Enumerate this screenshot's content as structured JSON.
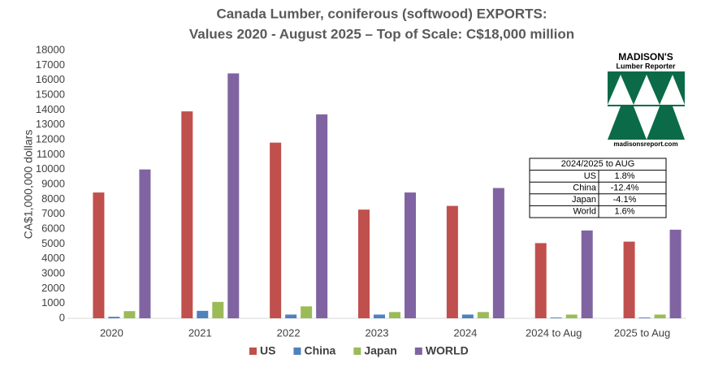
{
  "chart_data": {
    "type": "bar",
    "title": [
      "Canada Lumber, coniferous (softwood) EXPORTS:",
      "Values 2020 - August 2025 – Top of Scale: C$18,000 million"
    ],
    "y_label": "CA$1,000,000 dollars",
    "categories": [
      "2020",
      "2021",
      "2022",
      "2023",
      "2024",
      "2024 to Aug",
      "2025 to Aug"
    ],
    "series": [
      {
        "name": "US",
        "color": "#c0504d",
        "values": [
          8450,
          13900,
          11800,
          7300,
          7550,
          5050,
          5150
        ]
      },
      {
        "name": "China",
        "color": "#4f81bd",
        "values": [
          100,
          500,
          250,
          250,
          250,
          50,
          50
        ]
      },
      {
        "name": "Japan",
        "color": "#9bbb59",
        "values": [
          480,
          1100,
          800,
          420,
          420,
          250,
          250
        ]
      },
      {
        "name": "WORLD",
        "color": "#8064a2",
        "values": [
          10000,
          16450,
          13700,
          8450,
          8750,
          5900,
          5950
        ]
      }
    ],
    "ylim": [
      0,
      18000
    ],
    "yticks": [
      0,
      1000,
      2000,
      3000,
      4000,
      5000,
      6000,
      7000,
      8000,
      9000,
      10000,
      11000,
      12000,
      13000,
      14000,
      15000,
      16000,
      17000,
      18000
    ],
    "grid": false,
    "legend": "bottom"
  },
  "inset_table": {
    "title": "2024/2025 to AUG",
    "rows": [
      [
        "US",
        "1.8%"
      ],
      [
        "China",
        "-12.4%"
      ],
      [
        "Japan",
        "-4.1%"
      ],
      [
        "World",
        "1.6%"
      ]
    ]
  },
  "logo": {
    "name": "MADISON'S",
    "subtitle": "Lumber Reporter",
    "url": "madisonsreport.com"
  }
}
